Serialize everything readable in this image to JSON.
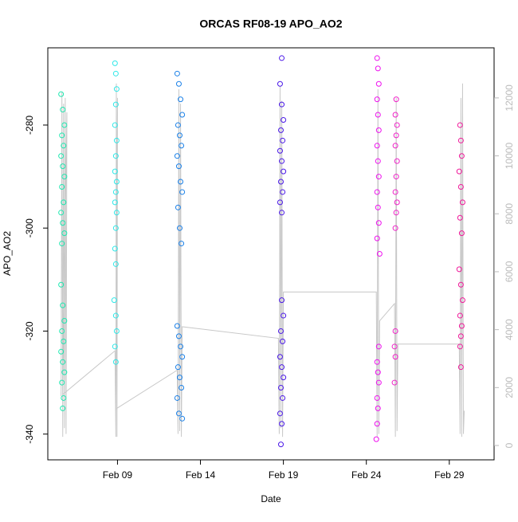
{
  "chart_data": {
    "type": "scatter",
    "title": "ORCAS RF08-19 APO_AO2",
    "x_label": "Date",
    "y_label": "APO_AO2",
    "xlim": [
      4.8,
      31.7
    ],
    "xticks": [
      {
        "value": 9,
        "label": "Feb 09"
      },
      {
        "value": 14,
        "label": "Feb 14"
      },
      {
        "value": 19,
        "label": "Feb 19"
      },
      {
        "value": 24,
        "label": "Feb 24"
      },
      {
        "value": 29,
        "label": "Feb 29"
      }
    ],
    "ylim": [
      -345,
      -265
    ],
    "yticks": [
      -340,
      -320,
      -300,
      -280
    ],
    "y2lim": [
      -495,
      13730
    ],
    "y2ticks": [
      0,
      2000,
      4000,
      6000,
      8000,
      10000,
      12000
    ],
    "series": [
      {
        "color": "#1ee8b0",
        "x": [
          5.6,
          5.7,
          5.8,
          5.65,
          5.75,
          5.6,
          5.7,
          5.8,
          5.65,
          5.75,
          5.6,
          5.7,
          5.8,
          5.65,
          5.6,
          5.7,
          5.8,
          5.65,
          5.75,
          5.6,
          5.7,
          5.8,
          5.65,
          5.75,
          5.7
        ],
        "values": [
          -274,
          -277,
          -280,
          -282,
          -284,
          -286,
          -288,
          -290,
          -292,
          -295,
          -297,
          -299,
          -301,
          -303,
          -311,
          -315,
          -318,
          -320,
          -322,
          -324,
          -326,
          -328,
          -330,
          -333,
          -335
        ]
      },
      {
        "color": "#2ee8e8",
        "x": [
          8.85,
          8.9,
          8.95,
          8.9,
          8.85,
          8.95,
          8.9,
          8.85,
          8.95,
          8.9,
          8.85,
          8.95,
          8.9,
          8.85,
          8.9,
          8.8,
          8.9,
          8.95,
          8.85,
          8.9
        ],
        "values": [
          -268,
          -270,
          -273,
          -276,
          -280,
          -283,
          -286,
          -289,
          -291,
          -293,
          -295,
          -297,
          -300,
          -304,
          -307,
          -314,
          -317,
          -320,
          -323,
          -326
        ]
      },
      {
        "color": "#1a80e8",
        "x": [
          12.6,
          12.7,
          12.8,
          12.9,
          12.65,
          12.75,
          12.85,
          12.6,
          12.7,
          12.8,
          12.9,
          12.65,
          12.75,
          12.85,
          12.6,
          12.7,
          12.8,
          12.9,
          12.65,
          12.75,
          12.85,
          12.6,
          12.7,
          12.9
        ],
        "values": [
          -270,
          -272,
          -275,
          -278,
          -280,
          -282,
          -284,
          -286,
          -288,
          -291,
          -293,
          -296,
          -300,
          -303,
          -319,
          -321,
          -323,
          -325,
          -327,
          -329,
          -331,
          -333,
          -336,
          -337
        ]
      },
      {
        "color": "#4a18e8",
        "x": [
          18.9,
          18.8,
          18.9,
          19.0,
          18.85,
          18.95,
          18.8,
          18.9,
          19.0,
          18.85,
          18.95,
          18.8,
          18.9,
          18.9,
          19.0,
          18.85,
          18.95,
          18.8,
          18.9,
          19.0,
          18.85,
          18.95,
          18.8,
          18.9,
          18.85
        ],
        "values": [
          -267,
          -272,
          -276,
          -279,
          -281,
          -283,
          -285,
          -287,
          -289,
          -291,
          -293,
          -295,
          -297,
          -314,
          -317,
          -320,
          -322,
          -325,
          -327,
          -329,
          -331,
          -333,
          -336,
          -338,
          -342
        ]
      },
      {
        "color": "#ee10ee",
        "x": [
          24.65,
          24.7,
          24.75,
          24.65,
          24.7,
          24.75,
          24.65,
          24.7,
          24.75,
          24.65,
          24.7,
          24.75,
          24.65,
          24.8,
          24.75,
          24.65,
          24.7,
          24.75,
          24.65,
          24.7,
          24.65,
          24.6
        ],
        "values": [
          -267,
          -269,
          -272,
          -275,
          -278,
          -281,
          -284,
          -287,
          -290,
          -293,
          -296,
          -299,
          -302,
          -305,
          -323,
          -326,
          -328,
          -330,
          -333,
          -335,
          -338,
          -341
        ]
      },
      {
        "color": "#f020c8",
        "x": [
          25.8,
          25.75,
          25.85,
          25.8,
          25.75,
          25.85,
          25.8,
          25.75,
          25.85,
          25.8,
          25.75,
          25.75,
          25.7,
          25.75,
          25.7
        ],
        "values": [
          -275,
          -278,
          -280,
          -282,
          -284,
          -287,
          -290,
          -293,
          -295,
          -297,
          -300,
          -320,
          -323,
          -325,
          -330
        ]
      },
      {
        "color": "#f0189a",
        "x": [
          29.65,
          29.7,
          29.75,
          29.6,
          29.7,
          29.8,
          29.65,
          29.75,
          29.6,
          29.7,
          29.8,
          29.65,
          29.75,
          29.7,
          29.65,
          29.7
        ],
        "values": [
          -280,
          -283,
          -286,
          -289,
          -292,
          -295,
          -298,
          -301,
          -308,
          -311,
          -314,
          -317,
          -319,
          -321,
          -323,
          -327
        ]
      },
      {
        "type": "line",
        "axis": "y2",
        "color": "#c8c8c8",
        "x": [
          5.6,
          5.65,
          5.7,
          5.75,
          5.8,
          5.85,
          5.9,
          5.95,
          5.7,
          8.85,
          8.9,
          8.93,
          8.97,
          9.0,
          8.9,
          12.6,
          12.65,
          12.7,
          12.75,
          12.8,
          12.85,
          12.9,
          18.7,
          18.75,
          18.8,
          18.85,
          18.9,
          18.95,
          19.0,
          24.6,
          24.65,
          24.7,
          24.75,
          24.8,
          25.7,
          25.75,
          25.8,
          25.85,
          25.9,
          29.6,
          29.65,
          29.7,
          29.75,
          29.8,
          29.85,
          29.9
        ],
        "values": [
          1700,
          12200,
          300,
          11800,
          600,
          12000,
          400,
          11500,
          1760,
          3270,
          300,
          12500,
          300,
          12000,
          1260,
          2600,
          400,
          12300,
          500,
          11800,
          300,
          4100,
          3700,
          400,
          12400,
          600,
          11900,
          300,
          5300,
          5300,
          300,
          12300,
          400,
          4300,
          4900,
          300,
          12000,
          500,
          3500,
          3500,
          400,
          12000,
          300,
          12500,
          400,
          1200
        ]
      }
    ]
  }
}
